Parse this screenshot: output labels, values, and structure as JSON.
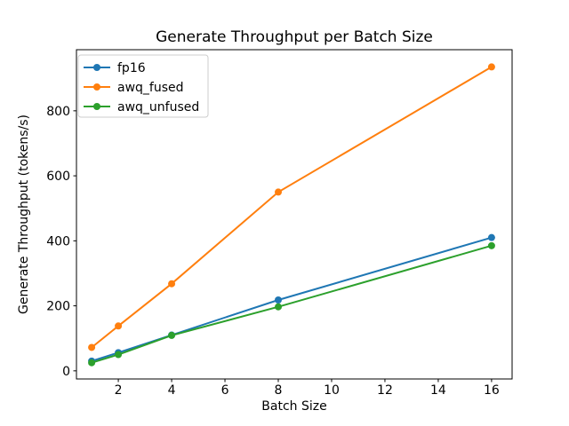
{
  "chart_data": {
    "type": "line",
    "title": "Generate Throughput per Batch Size",
    "xlabel": "Batch Size",
    "ylabel": "Generate Throughput (tokens/s)",
    "x": [
      1,
      2,
      4,
      8,
      16
    ],
    "series": [
      {
        "name": "fp16",
        "color": "#1f77b4",
        "values": [
          30,
          56,
          110,
          218,
          410
        ]
      },
      {
        "name": "awq_fused",
        "color": "#ff7f0e",
        "values": [
          72,
          138,
          268,
          550,
          935
        ]
      },
      {
        "name": "awq_unfused",
        "color": "#2ca02c",
        "values": [
          25,
          50,
          109,
          197,
          385
        ]
      }
    ],
    "xticks": [
      2,
      4,
      6,
      8,
      10,
      12,
      14,
      16
    ],
    "yticks": [
      0,
      200,
      400,
      600,
      800
    ],
    "xlim": [
      0.43,
      16.77
    ],
    "ylim": [
      -25,
      988
    ],
    "legend_position": "upper left",
    "grid": false,
    "axes_edge_color": "#000000",
    "legend_edge_color": "#cccccc",
    "background_color": "#ffffff"
  }
}
